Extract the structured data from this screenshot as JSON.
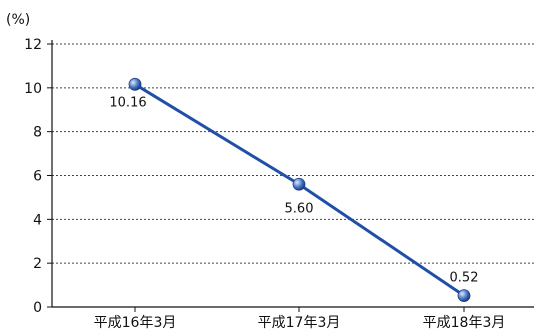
{
  "chart_data": {
    "type": "line",
    "unit_label": "(%)",
    "categories": [
      "平成16年3月",
      "平成17年3月",
      "平成18年3月"
    ],
    "series": [
      {
        "values": [
          10.16,
          5.6,
          0.52
        ],
        "labels": [
          "10.16",
          "5.60",
          "0.52"
        ]
      }
    ],
    "ylim": [
      0,
      12
    ],
    "yticks": [
      "0",
      "2",
      "4",
      "6",
      "8",
      "10",
      "12"
    ],
    "grid": "dotted horizontal",
    "colors": {
      "line": "#1f4fa8",
      "marker": "#4a78c8"
    }
  }
}
